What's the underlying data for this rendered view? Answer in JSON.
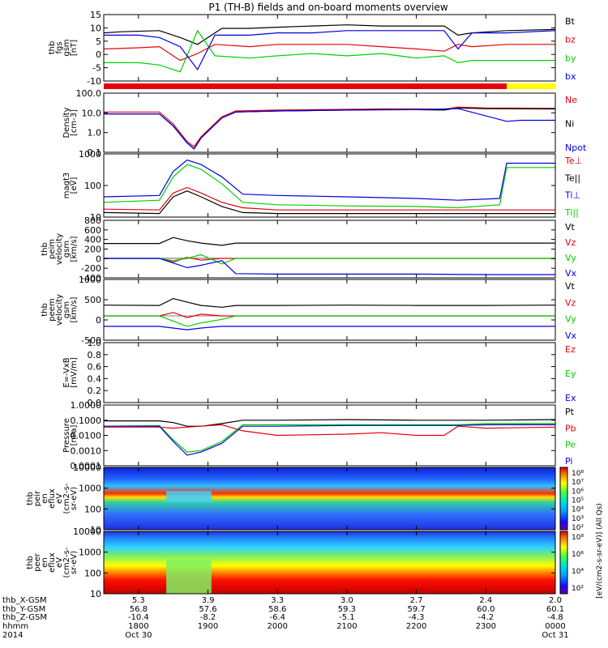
{
  "title": "P1 (TH-B) fields and on-board moments overview",
  "colors": {
    "black": "#000000",
    "red": "#e8000b",
    "green": "#00d000",
    "blue": "#0000e0",
    "yellow": "#ffff00"
  },
  "chart_data": [
    {
      "id": "fgs",
      "type": "line",
      "ylabel_lines": [
        "thb",
        "fgs",
        "gsm",
        "[nT]"
      ],
      "yticks": [
        "15",
        "10",
        "5",
        "0",
        "-5",
        "-10"
      ],
      "ylim": [
        -13,
        16
      ],
      "series": [
        {
          "name": "Bt",
          "color": "black",
          "x": [
            17.5,
            17.75,
            18.3,
            18.6,
            18.85,
            19.2,
            19.6,
            20.0,
            20.5,
            21.0,
            21.5,
            22.0,
            22.4,
            22.6,
            22.8,
            23.3,
            24.0
          ],
          "values": [
            8,
            8.5,
            9,
            6,
            3,
            10,
            10,
            10.5,
            11,
            11.5,
            11,
            11,
            11,
            7,
            8,
            9,
            9.5
          ]
        },
        {
          "name": "bz",
          "color": "red",
          "x": [
            17.5,
            18.0,
            18.3,
            18.6,
            18.85,
            19.1,
            19.6,
            20.0,
            20.5,
            21.0,
            21.5,
            22.0,
            22.4,
            22.6,
            22.8,
            23.3,
            24.0
          ],
          "values": [
            1,
            1.5,
            2,
            -4,
            -1,
            3,
            2,
            3,
            3,
            3,
            2,
            1,
            0,
            3,
            2,
            3,
            3
          ]
        },
        {
          "name": "by",
          "color": "green",
          "x": [
            17.5,
            18.0,
            18.3,
            18.6,
            18.85,
            19.1,
            19.6,
            20.0,
            20.5,
            21.0,
            21.5,
            22.0,
            22.4,
            22.6,
            22.8,
            23.3,
            24.0
          ],
          "values": [
            -5,
            -5,
            -6,
            -9,
            9,
            -2,
            -3,
            -2,
            -1,
            -2,
            -1,
            -3,
            -2,
            -5,
            -4,
            -4,
            -4
          ]
        },
        {
          "name": "bx",
          "color": "blue",
          "x": [
            17.5,
            18.0,
            18.3,
            18.6,
            18.85,
            19.1,
            19.6,
            20.0,
            20.5,
            21.0,
            21.5,
            22.0,
            22.4,
            22.6,
            22.8,
            23.3,
            24.0
          ],
          "values": [
            7,
            7,
            6,
            2,
            -8,
            7,
            7,
            8,
            8,
            9,
            9,
            9,
            9,
            1,
            8,
            8,
            9
          ]
        }
      ],
      "status_bar": [
        {
          "from": 17.5,
          "to": 23.3,
          "color": "red"
        },
        {
          "from": 23.3,
          "to": 24.0,
          "color": "yellow"
        }
      ]
    },
    {
      "id": "density",
      "type": "line",
      "log": true,
      "ylabel_lines": [
        "Density",
        "[cm-3]"
      ],
      "yticks": [
        "100.0",
        "10.0",
        "1.0",
        "0.1"
      ],
      "ylim": [
        0.03,
        200
      ],
      "series": [
        {
          "name": "Ne",
          "color": "red",
          "x": [
            17.5,
            18.3,
            18.5,
            18.7,
            18.8,
            18.9,
            19.2,
            19.4,
            20.0,
            21.0,
            21.5,
            22.0,
            22.4,
            22.6,
            23.0,
            24.0
          ],
          "values": [
            12,
            12,
            2,
            0.15,
            0.07,
            0.3,
            6,
            14,
            16,
            18,
            19,
            19,
            18,
            25,
            22,
            21
          ]
        },
        {
          "name": "Ni",
          "color": "black",
          "x": [
            17.5,
            18.3,
            18.5,
            18.7,
            18.8,
            18.9,
            19.2,
            19.4,
            20.0,
            21.0,
            21.5,
            22.0,
            22.4,
            22.6,
            23.0,
            24.0
          ],
          "values": [
            9,
            9,
            1.5,
            0.12,
            0.05,
            0.25,
            5,
            12,
            14,
            16,
            17,
            17,
            16,
            22,
            20,
            19
          ]
        },
        {
          "name": "Npot",
          "color": "blue",
          "x": [
            17.5,
            18.3,
            18.5,
            18.7,
            18.8,
            18.9,
            19.2,
            19.4,
            20.0,
            21.0,
            22.0,
            22.6,
            23.3,
            23.5,
            24.0
          ],
          "values": [
            9,
            9,
            1.5,
            0.12,
            0.05,
            0.25,
            5,
            12,
            14,
            16,
            17,
            20,
            3,
            3.5,
            3.5
          ]
        }
      ]
    },
    {
      "id": "temperature",
      "type": "line",
      "log": true,
      "ylabel_lines": [
        "magt3",
        "[eV]"
      ],
      "yticks": [
        "1000",
        "100",
        "10"
      ],
      "ylim": [
        10,
        1100
      ],
      "series": [
        {
          "name": "Te⊥",
          "color": "red",
          "x": [
            17.5,
            18.3,
            18.5,
            18.7,
            18.9,
            19.2,
            19.5,
            20.0,
            21.0,
            22.0,
            22.6,
            23.0,
            24.0
          ],
          "values": [
            18,
            17,
            60,
            90,
            60,
            30,
            20,
            17,
            17,
            17,
            17,
            17,
            17
          ]
        },
        {
          "name": "Te||",
          "color": "black",
          "x": [
            17.5,
            18.3,
            18.5,
            18.7,
            18.9,
            19.2,
            19.5,
            20.0,
            21.0,
            22.0,
            22.6,
            23.0,
            24.0
          ],
          "values": [
            14,
            13,
            45,
            70,
            45,
            22,
            14,
            13,
            13,
            13,
            13,
            13,
            13
          ]
        },
        {
          "name": "Ti⊥",
          "color": "blue",
          "x": [
            17.5,
            18.3,
            18.5,
            18.7,
            18.9,
            19.2,
            19.5,
            20.0,
            21.0,
            22.0,
            22.6,
            23.2,
            23.3,
            24.0
          ],
          "values": [
            45,
            50,
            300,
            700,
            500,
            200,
            55,
            50,
            45,
            40,
            35,
            40,
            550,
            550
          ]
        },
        {
          "name": "Ti||",
          "color": "green",
          "x": [
            17.5,
            18.3,
            18.5,
            18.7,
            18.9,
            19.2,
            19.5,
            20.0,
            21.0,
            22.0,
            22.6,
            23.2,
            23.3,
            24.0
          ],
          "values": [
            30,
            35,
            200,
            500,
            350,
            120,
            30,
            25,
            23,
            22,
            20,
            25,
            400,
            400
          ]
        }
      ]
    },
    {
      "id": "peim_velocity",
      "type": "line",
      "ylabel_lines": [
        "thb",
        "peim",
        "velocity",
        "gsm",
        "[km/s]"
      ],
      "yticks": [
        "800",
        "600",
        "400",
        "200",
        "0",
        "-200",
        "-400"
      ],
      "ylim": [
        -420,
        820
      ],
      "series": [
        {
          "name": "Vt",
          "color": "black",
          "x": [
            17.5,
            18.3,
            18.5,
            18.7,
            18.9,
            19.2,
            19.4,
            20.0,
            21.0,
            22.0,
            23.0,
            24.0
          ],
          "values": [
            320,
            320,
            450,
            380,
            330,
            280,
            330,
            330,
            330,
            330,
            330,
            330
          ]
        },
        {
          "name": "Vz",
          "color": "red",
          "x": [
            17.5,
            18.3,
            18.5,
            18.7,
            18.9,
            19.2,
            19.4,
            20.0,
            21.0,
            22.0,
            23.0,
            24.0
          ],
          "values": [
            0,
            0,
            -80,
            20,
            -40,
            0,
            0,
            0,
            0,
            0,
            0,
            0
          ]
        },
        {
          "name": "Vy",
          "color": "green",
          "x": [
            17.5,
            18.3,
            18.5,
            18.7,
            18.9,
            19.2,
            19.4,
            20.0,
            21.0,
            22.0,
            23.0,
            24.0
          ],
          "values": [
            0,
            0,
            -50,
            0,
            80,
            -120,
            0,
            0,
            0,
            0,
            0,
            0
          ]
        },
        {
          "name": "Vx",
          "color": "blue",
          "x": [
            17.5,
            18.3,
            18.5,
            18.7,
            18.9,
            19.2,
            19.4,
            20.0,
            21.0,
            22.0,
            23.0,
            24.0
          ],
          "values": [
            0,
            0,
            -100,
            -200,
            -150,
            -50,
            -330,
            -340,
            -340,
            -340,
            -350,
            -350
          ]
        }
      ]
    },
    {
      "id": "peem_velocity",
      "type": "line",
      "ylabel_lines": [
        "thb",
        "peem",
        "velocity",
        "gsm",
        "[km/s]"
      ],
      "yticks": [
        "1000",
        "500",
        "0",
        "-500"
      ],
      "ylim": [
        -700,
        1050
      ],
      "series": [
        {
          "name": "Vt",
          "color": "black",
          "x": [
            17.5,
            18.3,
            18.5,
            18.7,
            18.9,
            19.2,
            19.4,
            20.0,
            21.0,
            22.0,
            23.0,
            24.0
          ],
          "values": [
            310,
            300,
            500,
            400,
            300,
            250,
            300,
            300,
            310,
            300,
            300,
            310
          ]
        },
        {
          "name": "Vz",
          "color": "red",
          "x": [
            17.5,
            18.3,
            18.5,
            18.7,
            18.9,
            19.2,
            19.4,
            20.0,
            21.0,
            22.0,
            23.0,
            24.0
          ],
          "values": [
            0,
            0,
            100,
            -50,
            50,
            0,
            0,
            0,
            0,
            0,
            0,
            0
          ]
        },
        {
          "name": "Vy",
          "color": "green",
          "x": [
            17.5,
            18.3,
            18.5,
            18.7,
            18.9,
            19.2,
            19.4,
            20.0,
            21.0,
            22.0,
            23.0,
            24.0
          ],
          "values": [
            0,
            0,
            -150,
            -300,
            -200,
            -100,
            0,
            0,
            0,
            0,
            0,
            0
          ]
        },
        {
          "name": "Vx",
          "color": "blue",
          "x": [
            17.5,
            18.3,
            18.5,
            18.7,
            18.9,
            19.2,
            19.4,
            20.0,
            21.0,
            22.0,
            23.0,
            24.0
          ],
          "values": [
            -300,
            -300,
            -350,
            -400,
            -350,
            -300,
            -300,
            -300,
            -300,
            -300,
            -300,
            -300
          ]
        }
      ]
    },
    {
      "id": "efield",
      "type": "line",
      "ylabel_lines": [
        "E=-VxB",
        "[mV/m]"
      ],
      "yticks": [
        "1.0",
        "0.8",
        "0.6",
        "0.4",
        "0.2",
        "0.0"
      ],
      "ylim": [
        0,
        1
      ],
      "series": [
        {
          "name": "Ez",
          "color": "red",
          "x": [],
          "values": []
        },
        {
          "name": "Ey",
          "color": "green",
          "x": [],
          "values": []
        },
        {
          "name": "Ex",
          "color": "blue",
          "x": [],
          "values": []
        }
      ]
    },
    {
      "id": "pressure",
      "type": "line",
      "log": true,
      "ylabel_lines": [
        "Pressure",
        "[nPa]"
      ],
      "yticks": [
        "1.0000",
        "0.1000",
        "0.0100",
        "0.0010",
        "0.0001"
      ],
      "ylim": [
        0.0001,
        1
      ],
      "series": [
        {
          "name": "Pt",
          "color": "black",
          "x": [
            17.5,
            18.3,
            18.5,
            18.7,
            18.9,
            19.2,
            19.5,
            20.0,
            21.0,
            22.0,
            22.4,
            22.6,
            23.0,
            24.0
          ],
          "values": [
            0.09,
            0.09,
            0.07,
            0.04,
            0.04,
            0.06,
            0.1,
            0.1,
            0.11,
            0.1,
            0.1,
            0.1,
            0.1,
            0.11
          ]
        },
        {
          "name": "Pb",
          "color": "red",
          "x": [
            17.5,
            18.3,
            18.5,
            18.7,
            18.9,
            19.2,
            19.5,
            20.0,
            21.0,
            21.5,
            22.0,
            22.4,
            22.6,
            23.0,
            24.0
          ],
          "values": [
            0.035,
            0.035,
            0.03,
            0.035,
            0.04,
            0.05,
            0.02,
            0.01,
            0.012,
            0.015,
            0.01,
            0.01,
            0.04,
            0.03,
            0.035
          ]
        },
        {
          "name": "Pe",
          "color": "green",
          "x": [
            17.5,
            18.3,
            18.5,
            18.7,
            18.9,
            19.2,
            19.5,
            20.0,
            21.0,
            22.0,
            22.4,
            22.6,
            23.0,
            24.0
          ],
          "values": [
            0.04,
            0.045,
            0.005,
            0.0008,
            0.001,
            0.004,
            0.05,
            0.05,
            0.05,
            0.05,
            0.05,
            0.05,
            0.06,
            0.06
          ]
        },
        {
          "name": "Pi",
          "color": "blue",
          "x": [
            17.5,
            18.3,
            18.5,
            18.7,
            18.9,
            19.2,
            19.5,
            20.0,
            21.0,
            22.0,
            22.4,
            22.6,
            23.0,
            24.0
          ],
          "values": [
            0.04,
            0.04,
            0.004,
            0.0005,
            0.0008,
            0.003,
            0.04,
            0.04,
            0.045,
            0.045,
            0.045,
            0.045,
            0.05,
            0.05
          ]
        }
      ]
    },
    {
      "id": "peir_spec",
      "type": "heatmap",
      "ylabel_lines": [
        "thb",
        "peir",
        "en",
        "eflux",
        "eV",
        "(cm2-s-",
        "sr-eV)"
      ],
      "yticks": [
        "10000",
        "1000",
        "100",
        "10"
      ],
      "ylim": [
        10,
        30000
      ]
    },
    {
      "id": "peer_spec",
      "type": "heatmap",
      "ylabel_lines": [
        "thb",
        "peer",
        "en",
        "eflux",
        "eV",
        "(cm2-s-",
        "sr-eV)"
      ],
      "yticks": [
        "10000",
        "1000",
        "100",
        "10"
      ],
      "ylim": [
        10,
        30000
      ]
    }
  ],
  "colorbar": {
    "label": "[eV/(cm2-s-sr-eV)] (All Qs)",
    "ticks_upper": [
      "10⁸",
      "10⁷",
      "10⁶",
      "10⁵",
      "10⁴",
      "10³",
      "10²"
    ],
    "ticks_lower": [
      "10⁸",
      "10⁶",
      "10⁴",
      "10²"
    ]
  },
  "x_axis": {
    "row_labels": [
      "thb_X-GSM",
      "thb_Y-GSM",
      "thb_Z-GSM",
      "hhmm",
      "2014"
    ],
    "columns": [
      {
        "x": "5.3",
        "y": "56.8",
        "z": "-10.4",
        "hhmm": "1800",
        "date": "Oct 30"
      },
      {
        "x": "3.9",
        "y": "57.6",
        "z": "-8.2",
        "hhmm": "1900",
        "date": ""
      },
      {
        "x": "3.3",
        "y": "58.6",
        "z": "-6.4",
        "hhmm": "2000",
        "date": ""
      },
      {
        "x": "3.0",
        "y": "59.3",
        "z": "-5.1",
        "hhmm": "2100",
        "date": ""
      },
      {
        "x": "2.7",
        "y": "59.7",
        "z": "-4.3",
        "hhmm": "2200",
        "date": ""
      },
      {
        "x": "2.4",
        "y": "60.0",
        "z": "-4.2",
        "hhmm": "2300",
        "date": ""
      },
      {
        "x": "2.0",
        "y": "60.1",
        "z": "-4.8",
        "hhmm": "0000",
        "date": "Oct 31"
      }
    ],
    "range_hours": [
      17.5,
      24.0
    ],
    "tick_hours": [
      18,
      19,
      20,
      21,
      22,
      23,
      24
    ]
  }
}
